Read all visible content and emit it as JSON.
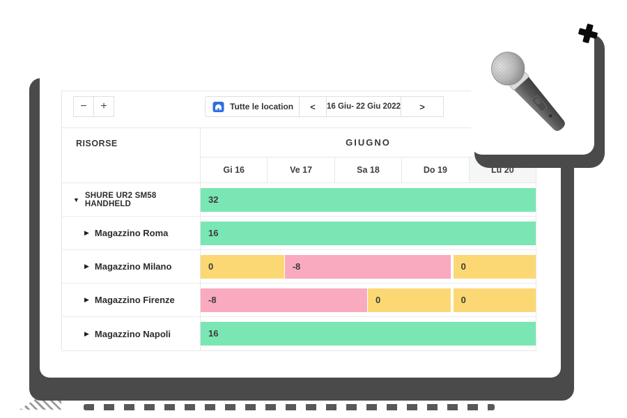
{
  "toolbar": {
    "zoom_out_label": "−",
    "zoom_in_label": "+",
    "location": {
      "label": "Tutte le location",
      "caret": "▼"
    },
    "date_nav": {
      "prev": "<",
      "range": "16 Giu- 22 Giu 2022",
      "next": ">"
    }
  },
  "scheduler": {
    "resources_header": "RISORSE",
    "month_header": "GIUGNO",
    "days": [
      "Gi 16",
      "Ve 17",
      "Sa 18",
      "Do 19",
      "Lu 20"
    ],
    "shaded_day_index": 4,
    "rows": [
      {
        "label": "SHURE UR2 SM58 HANDHELD",
        "type": "resource",
        "toggle": "expanded",
        "segments": [
          {
            "value": "32",
            "status": "available",
            "start": 0,
            "end": 100
          }
        ]
      },
      {
        "label": "Magazzino Roma",
        "type": "location",
        "toggle": "collapsed",
        "segments": [
          {
            "value": "16",
            "status": "available",
            "start": 0,
            "end": 100
          }
        ]
      },
      {
        "label": "Magazzino Milano",
        "type": "location",
        "toggle": "collapsed",
        "segments": [
          {
            "value": "0",
            "status": "zero",
            "start": 0,
            "end": 24.9
          },
          {
            "value": "-8",
            "status": "negative",
            "start": 25.1,
            "end": 74.7
          },
          {
            "value": "0",
            "status": "zero",
            "start": 75.4,
            "end": 100
          }
        ]
      },
      {
        "label": "Magazzino Firenze",
        "type": "location",
        "toggle": "collapsed",
        "segments": [
          {
            "value": "-8",
            "status": "negative",
            "start": 0,
            "end": 49.6
          },
          {
            "value": "0",
            "status": "zero",
            "start": 49.9,
            "end": 74.7
          },
          {
            "value": "0",
            "status": "zero",
            "start": 75.4,
            "end": 100
          }
        ]
      },
      {
        "label": "Magazzino Napoli",
        "type": "location",
        "toggle": "collapsed",
        "segments": [
          {
            "value": "16",
            "status": "available",
            "start": 0,
            "end": 100
          }
        ]
      }
    ]
  },
  "icons": {
    "expanded_glyph": "▼",
    "collapsed_glyph": "▶",
    "location_icon": "warehouse-icon",
    "cursor_icon": "cursor-cross-icon",
    "product_image": "shure-sm58-microphone"
  },
  "colors": {
    "available": "#79e6b4",
    "zero": "#fcd874",
    "negative": "#f9aabe",
    "accent_blue": "#2f6ce0",
    "shadow": "#4a4a4a"
  }
}
